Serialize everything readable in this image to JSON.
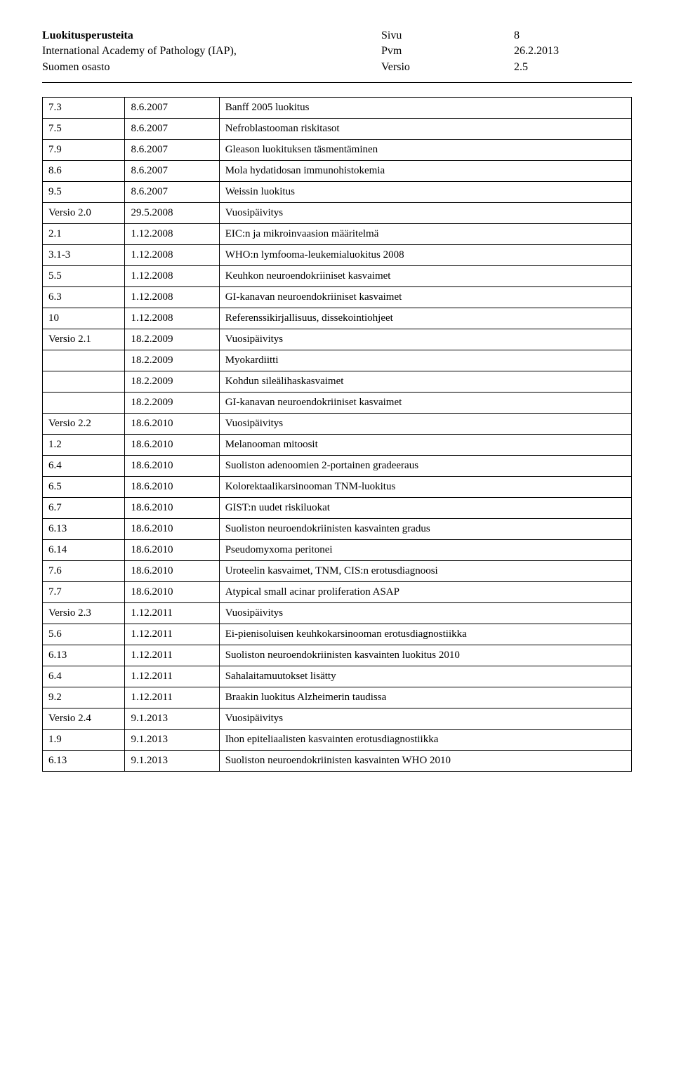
{
  "header": {
    "title": "Luokitusperusteita",
    "org_line1": "International Academy of Pathology (IAP),",
    "org_line2": "Suomen osasto",
    "page_label": "Sivu",
    "page_num": "8",
    "date_label": "Pvm",
    "date_value": "26.2.2013",
    "version_label": "Versio",
    "version_value": "2.5"
  },
  "rows": [
    [
      "7.3",
      "8.6.2007",
      "Banff 2005 luokitus"
    ],
    [
      "7.5",
      "8.6.2007",
      "Nefroblastooman riskitasot"
    ],
    [
      "7.9",
      "8.6.2007",
      "Gleason luokituksen täsmentäminen"
    ],
    [
      "8.6",
      "8.6.2007",
      "Mola hydatidosan immunohistokemia"
    ],
    [
      "9.5",
      "8.6.2007",
      "Weissin luokitus"
    ],
    [
      "Versio 2.0",
      "29.5.2008",
      "Vuosipäivitys"
    ],
    [
      "2.1",
      "1.12.2008",
      "EIC:n ja mikroinvaasion määritelmä"
    ],
    [
      "3.1-3",
      "1.12.2008",
      "WHO:n lymfooma-leukemialuokitus 2008"
    ],
    [
      "5.5",
      "1.12.2008",
      "Keuhkon neuroendokriiniset kasvaimet"
    ],
    [
      "6.3",
      "1.12.2008",
      "GI-kanavan neuroendokriiniset kasvaimet"
    ],
    [
      "10",
      "1.12.2008",
      "Referenssikirjallisuus, dissekointiohjeet"
    ],
    [
      "Versio 2.1",
      "18.2.2009",
      "Vuosipäivitys"
    ],
    [
      "",
      "18.2.2009",
      "Myokardiitti"
    ],
    [
      "",
      "18.2.2009",
      "Kohdun sileälihaskasvaimet"
    ],
    [
      "",
      "18.2.2009",
      "GI-kanavan neuroendokriiniset kasvaimet"
    ],
    [
      "Versio 2.2",
      "18.6.2010",
      "Vuosipäivitys"
    ],
    [
      "1.2",
      "18.6.2010",
      "Melanooman mitoosit"
    ],
    [
      "6.4",
      "18.6.2010",
      "Suoliston adenoomien 2-portainen gradeeraus"
    ],
    [
      "6.5",
      "18.6.2010",
      "Kolorektaalikarsinooman TNM-luokitus"
    ],
    [
      "6.7",
      "18.6.2010",
      "GIST:n uudet riskiluokat"
    ],
    [
      "6.13",
      "18.6.2010",
      "Suoliston neuroendokriinisten kasvainten gradus"
    ],
    [
      "6.14",
      "18.6.2010",
      "Pseudomyxoma peritonei"
    ],
    [
      "7.6",
      "18.6.2010",
      "Uroteelin kasvaimet, TNM, CIS:n erotusdiagnoosi"
    ],
    [
      "7.7",
      "18.6.2010",
      "Atypical small acinar proliferation ASAP"
    ],
    [
      "Versio 2.3",
      "1.12.2011",
      "Vuosipäivitys"
    ],
    [
      "5.6",
      "1.12.2011",
      "Ei-pienisoluisen keuhkokarsinooman erotusdiagnostiikka"
    ],
    [
      "6.13",
      "1.12.2011",
      "Suoliston neuroendokriinisten kasvainten luokitus 2010"
    ],
    [
      "6.4",
      "1.12.2011",
      "Sahalaitamuutokset lisätty"
    ],
    [
      "9.2",
      "1.12.2011",
      "Braakin luokitus Alzheimerin taudissa"
    ],
    [
      "Versio 2.4",
      "9.1.2013",
      "Vuosipäivitys"
    ],
    [
      "1.9",
      "9.1.2013",
      "Ihon epiteliaalisten kasvainten erotusdiagnostiikka"
    ],
    [
      "6.13",
      "9.1.2013",
      "Suoliston neuroendokriinisten kasvainten WHO 2010"
    ]
  ]
}
